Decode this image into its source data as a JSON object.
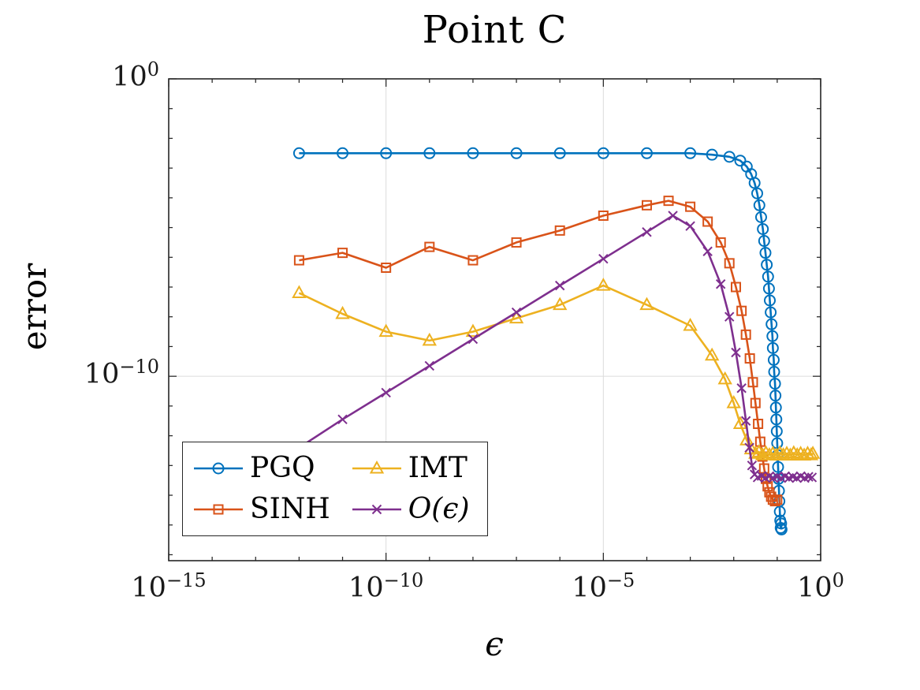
{
  "chart_data": {
    "type": "line",
    "title": "Point C",
    "xlabel": "ϵ",
    "ylabel": "error",
    "x_scale": "log10",
    "y_scale": "log10",
    "xlim_log10": [
      -15,
      0
    ],
    "ylim_log10": [
      -16.2,
      0
    ],
    "grid": true,
    "style": {
      "axis_color": "#262626",
      "grid_color": "#dcdcdc",
      "background": "#ffffff",
      "line_width": 2.6
    },
    "x_ticks": [
      {
        "log10": -15,
        "base": "10",
        "exp": "−15"
      },
      {
        "log10": -10,
        "base": "10",
        "exp": "−10"
      },
      {
        "log10": -5,
        "base": "10",
        "exp": "−5"
      },
      {
        "log10": 0,
        "base": "10",
        "exp": "0"
      }
    ],
    "y_ticks": [
      {
        "log10": 0,
        "base": "10",
        "exp": "0"
      },
      {
        "log10": -10,
        "base": "10",
        "exp": "−10"
      }
    ],
    "legend": {
      "position": "southwest",
      "entries": [
        {
          "label": "PGQ",
          "italic": false
        },
        {
          "label": "SINH",
          "italic": false
        },
        {
          "label": "IMT",
          "italic": false
        },
        {
          "label": "O(ϵ)",
          "italic": true
        }
      ]
    },
    "series": [
      {
        "id": "pgq",
        "name": "PGQ",
        "color": "#0072BD",
        "marker": "circle",
        "points_log10": [
          [
            -12,
            -2.5
          ],
          [
            -11,
            -2.5
          ],
          [
            -10,
            -2.5
          ],
          [
            -9,
            -2.5
          ],
          [
            -8,
            -2.5
          ],
          [
            -7,
            -2.5
          ],
          [
            -6,
            -2.5
          ],
          [
            -5,
            -2.5
          ],
          [
            -4,
            -2.5
          ],
          [
            -3,
            -2.5
          ],
          [
            -2.5,
            -2.55
          ],
          [
            -2.1,
            -2.62
          ],
          [
            -1.85,
            -2.75
          ],
          [
            -1.7,
            -2.95
          ],
          [
            -1.6,
            -3.2
          ],
          [
            -1.52,
            -3.5
          ],
          [
            -1.46,
            -3.85
          ],
          [
            -1.41,
            -4.25
          ],
          [
            -1.37,
            -4.65
          ],
          [
            -1.33,
            -5.05
          ],
          [
            -1.3,
            -5.45
          ],
          [
            -1.27,
            -5.85
          ],
          [
            -1.24,
            -6.25
          ],
          [
            -1.21,
            -6.65
          ],
          [
            -1.19,
            -7.05
          ],
          [
            -1.17,
            -7.45
          ],
          [
            -1.15,
            -7.85
          ],
          [
            -1.13,
            -8.25
          ],
          [
            -1.11,
            -8.65
          ],
          [
            -1.1,
            -9.05
          ],
          [
            -1.08,
            -9.45
          ],
          [
            -1.07,
            -9.85
          ],
          [
            -1.05,
            -10.25
          ],
          [
            -1.04,
            -10.65
          ],
          [
            -1.03,
            -11.05
          ],
          [
            -1.02,
            -11.45
          ],
          [
            -1.01,
            -11.85
          ],
          [
            -1,
            -12.25
          ],
          [
            -0.99,
            -12.65
          ],
          [
            -0.98,
            -13.05
          ],
          [
            -0.97,
            -13.45
          ],
          [
            -0.96,
            -13.85
          ],
          [
            -0.95,
            -14.2
          ],
          [
            -0.94,
            -14.55
          ],
          [
            -0.93,
            -14.85
          ],
          [
            -0.92,
            -15.1
          ],
          [
            -0.91,
            -14.95
          ],
          [
            -0.9,
            -15.15
          ]
        ]
      },
      {
        "id": "sinh",
        "name": "SINH",
        "color": "#D95319",
        "marker": "square",
        "points_log10": [
          [
            -12,
            -6.1
          ],
          [
            -11,
            -5.85
          ],
          [
            -10,
            -6.35
          ],
          [
            -9,
            -5.65
          ],
          [
            -8,
            -6.1
          ],
          [
            -7,
            -5.5
          ],
          [
            -6,
            -5.1
          ],
          [
            -5,
            -4.6
          ],
          [
            -4,
            -4.25
          ],
          [
            -3.5,
            -4.1
          ],
          [
            -3,
            -4.3
          ],
          [
            -2.6,
            -4.8
          ],
          [
            -2.3,
            -5.5
          ],
          [
            -2.1,
            -6.2
          ],
          [
            -1.95,
            -7
          ],
          [
            -1.82,
            -7.8
          ],
          [
            -1.72,
            -8.6
          ],
          [
            -1.63,
            -9.4
          ],
          [
            -1.56,
            -10.2
          ],
          [
            -1.5,
            -10.9
          ],
          [
            -1.44,
            -11.6
          ],
          [
            -1.39,
            -12.2
          ],
          [
            -1.34,
            -12.7
          ],
          [
            -1.3,
            -13.1
          ],
          [
            -1.26,
            -13.45
          ],
          [
            -1.22,
            -13.7
          ],
          [
            -1.18,
            -13.9
          ],
          [
            -1.14,
            -14.05
          ],
          [
            -1.1,
            -14.15
          ],
          [
            -1.05,
            -14.2
          ],
          [
            -1,
            -14.15
          ]
        ]
      },
      {
        "id": "imt",
        "name": "IMT",
        "color": "#EDB120",
        "marker": "triangle",
        "points_log10": [
          [
            -12,
            -7.2
          ],
          [
            -11,
            -7.9
          ],
          [
            -10,
            -8.5
          ],
          [
            -9,
            -8.8
          ],
          [
            -8,
            -8.5
          ],
          [
            -7,
            -8.05
          ],
          [
            -6,
            -7.6
          ],
          [
            -5,
            -6.95
          ],
          [
            -4,
            -7.6
          ],
          [
            -3,
            -8.3
          ],
          [
            -2.5,
            -9.3
          ],
          [
            -2.2,
            -10.1
          ],
          [
            -2,
            -10.9
          ],
          [
            -1.85,
            -11.6
          ],
          [
            -1.7,
            -12.15
          ],
          [
            -1.6,
            -12.45
          ],
          [
            -1.5,
            -12.6
          ],
          [
            -1.42,
            -12.55
          ],
          [
            -1.34,
            -12.65
          ],
          [
            -1.26,
            -12.58
          ],
          [
            -1.18,
            -12.65
          ],
          [
            -1.1,
            -12.6
          ],
          [
            -1.02,
            -12.66
          ],
          [
            -0.94,
            -12.58
          ],
          [
            -0.86,
            -12.65
          ],
          [
            -0.78,
            -12.6
          ],
          [
            -0.7,
            -12.66
          ],
          [
            -0.62,
            -12.58
          ],
          [
            -0.54,
            -12.65
          ],
          [
            -0.46,
            -12.6
          ],
          [
            -0.38,
            -12.66
          ],
          [
            -0.3,
            -12.6
          ],
          [
            -0.22,
            -12.65
          ],
          [
            -0.18,
            -12.6
          ]
        ]
      },
      {
        "id": "oeps",
        "name": "O(ϵ)",
        "color": "#7E2F8E",
        "marker": "x",
        "points_log10": [
          [
            -12,
            -12.4
          ],
          [
            -11,
            -11.45
          ],
          [
            -10,
            -10.55
          ],
          [
            -9,
            -9.65
          ],
          [
            -8,
            -8.75
          ],
          [
            -7,
            -7.85
          ],
          [
            -6,
            -6.95
          ],
          [
            -5,
            -6.05
          ],
          [
            -4,
            -5.15
          ],
          [
            -3.4,
            -4.6
          ],
          [
            -3,
            -4.95
          ],
          [
            -2.6,
            -5.8
          ],
          [
            -2.3,
            -6.9
          ],
          [
            -2.1,
            -8
          ],
          [
            -1.95,
            -9.2
          ],
          [
            -1.82,
            -10.4
          ],
          [
            -1.72,
            -11.5
          ],
          [
            -1.64,
            -12.4
          ],
          [
            -1.58,
            -13
          ],
          [
            -1.52,
            -13.3
          ],
          [
            -1.45,
            -13.4
          ],
          [
            -1.36,
            -13.35
          ],
          [
            -1.27,
            -13.42
          ],
          [
            -1.18,
            -13.36
          ],
          [
            -1.09,
            -13.42
          ],
          [
            -1,
            -13.38
          ],
          [
            -0.91,
            -13.42
          ],
          [
            -0.82,
            -13.36
          ],
          [
            -0.73,
            -13.42
          ],
          [
            -0.64,
            -13.38
          ],
          [
            -0.55,
            -13.42
          ],
          [
            -0.46,
            -13.36
          ],
          [
            -0.37,
            -13.42
          ],
          [
            -0.28,
            -13.38
          ],
          [
            -0.2,
            -13.4
          ]
        ]
      }
    ]
  }
}
